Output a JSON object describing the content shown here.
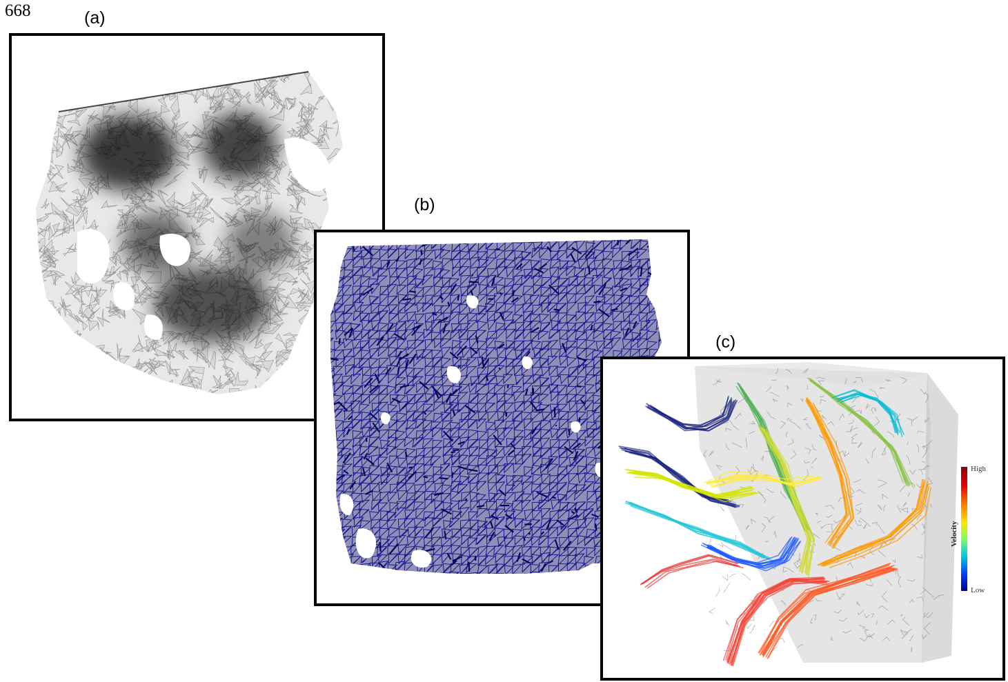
{
  "line_number": "668",
  "panels": [
    {
      "label": "(a)"
    },
    {
      "label": "(b)"
    },
    {
      "label": "(c)"
    }
  ],
  "colorbar": {
    "title": "Velocity",
    "high": "High",
    "low": "Low",
    "colors": [
      "#8b0000",
      "#e60000",
      "#ff7a00",
      "#ffe600",
      "#7dff5a",
      "#00c8e6",
      "#0040ff",
      "#00008b"
    ]
  },
  "colors": {
    "mesh": "#1a1a8c",
    "pore": "#000000"
  }
}
